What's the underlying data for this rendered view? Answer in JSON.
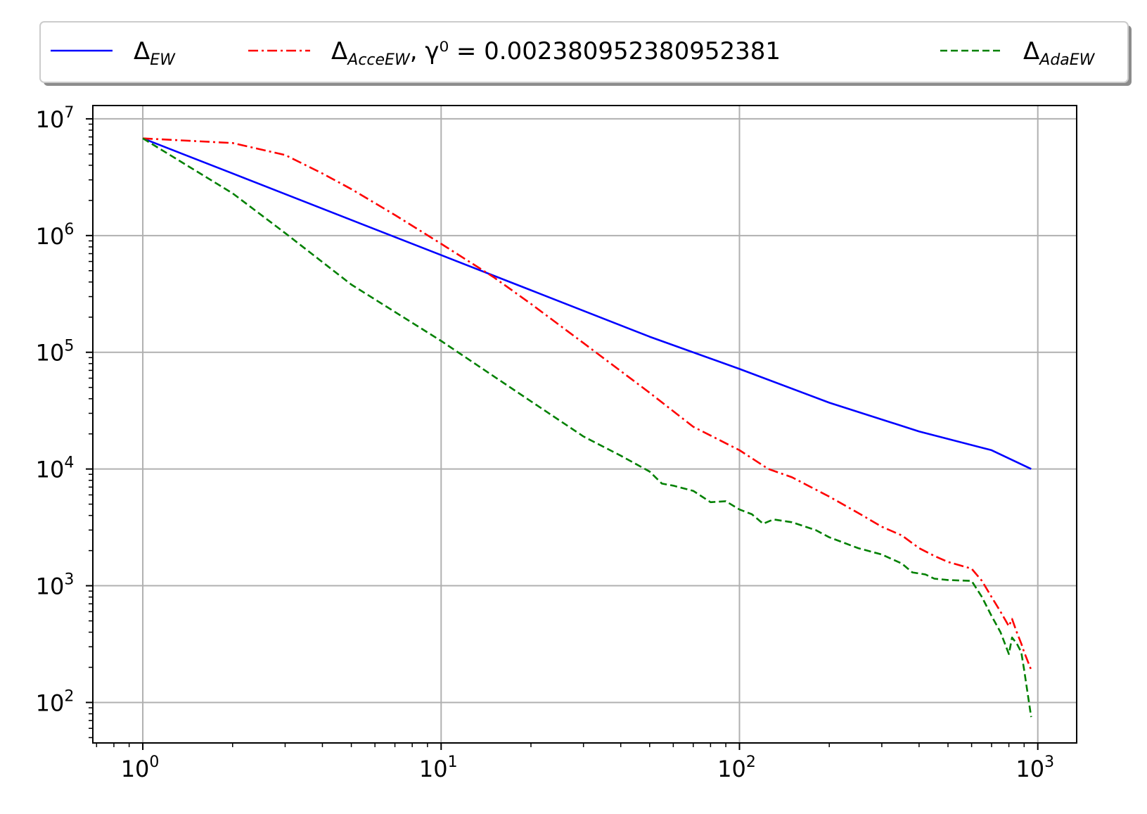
{
  "chart_data": {
    "type": "line",
    "title": "",
    "xlabel": "",
    "ylabel": "",
    "xscale": "log",
    "yscale": "log",
    "xlim": [
      0.68,
      1350
    ],
    "ylim": [
      45,
      13000000
    ],
    "grid": true,
    "legend_placement": "top, above plot, single row",
    "x_ticks": [
      {
        "base": "10",
        "exp": "0",
        "value": 1
      },
      {
        "base": "10",
        "exp": "1",
        "value": 10
      },
      {
        "base": "10",
        "exp": "2",
        "value": 100
      },
      {
        "base": "10",
        "exp": "3",
        "value": 1000
      }
    ],
    "y_ticks": [
      {
        "base": "10",
        "exp": "2",
        "value": 100
      },
      {
        "base": "10",
        "exp": "3",
        "value": 1000
      },
      {
        "base": "10",
        "exp": "4",
        "value": 10000
      },
      {
        "base": "10",
        "exp": "5",
        "value": 100000
      },
      {
        "base": "10",
        "exp": "6",
        "value": 1000000
      },
      {
        "base": "10",
        "exp": "7",
        "value": 10000000
      }
    ],
    "series": [
      {
        "name": "Δ_EW",
        "legend": {
          "main": "Δ",
          "sub": "EW",
          "rest": ""
        },
        "color": "#0000ff",
        "dash": "solid",
        "x": [
          1,
          2,
          5,
          10,
          20,
          50,
          100,
          200,
          400,
          700,
          950
        ],
        "y": [
          6800000,
          3400000,
          1360000,
          680000,
          340000,
          136000,
          72000,
          37000,
          21000,
          14500,
          10000
        ]
      },
      {
        "name": "Δ_AcceEW, γ^0 = 0.002380952380952381",
        "legend": {
          "main": "Δ",
          "sub": "AcceEW",
          "rest": ", γ⁰ = 0.002380952380952381"
        },
        "color": "#ff0000",
        "dash": "dashdot",
        "x": [
          1,
          2,
          3,
          4,
          5,
          7,
          10,
          15,
          20,
          30,
          50,
          70,
          100,
          125,
          150,
          200,
          250,
          300,
          350,
          400,
          450,
          500,
          600,
          650,
          700,
          750,
          800,
          820,
          850,
          880,
          900,
          950
        ],
        "y": [
          6800000,
          6200000,
          4900000,
          3400000,
          2500000,
          1500000,
          850000,
          440000,
          260000,
          120000,
          45000,
          23000,
          14500,
          10000,
          8500,
          5800,
          4200,
          3200,
          2700,
          2100,
          1800,
          1600,
          1400,
          1100,
          800,
          600,
          450,
          520,
          400,
          320,
          270,
          190
        ]
      },
      {
        "name": "Δ_AdaEW",
        "legend": {
          "main": "Δ",
          "sub": "AdaEW",
          "rest": ""
        },
        "color": "#008000",
        "dash": "dashed",
        "x": [
          1,
          2,
          3,
          5,
          10,
          20,
          30,
          40,
          50,
          55,
          60,
          70,
          80,
          90,
          100,
          110,
          120,
          130,
          150,
          180,
          200,
          250,
          300,
          350,
          380,
          420,
          450,
          500,
          600,
          650,
          700,
          750,
          800,
          820,
          850,
          880,
          900,
          950
        ],
        "y": [
          6800000,
          2300000,
          1050000,
          380000,
          125000,
          38000,
          19000,
          13000,
          9500,
          7500,
          7200,
          6500,
          5200,
          5300,
          4500,
          4100,
          3400,
          3700,
          3500,
          3000,
          2600,
          2100,
          1850,
          1550,
          1300,
          1250,
          1150,
          1120,
          1100,
          800,
          550,
          400,
          260,
          360,
          320,
          270,
          190,
          75
        ]
      }
    ]
  }
}
